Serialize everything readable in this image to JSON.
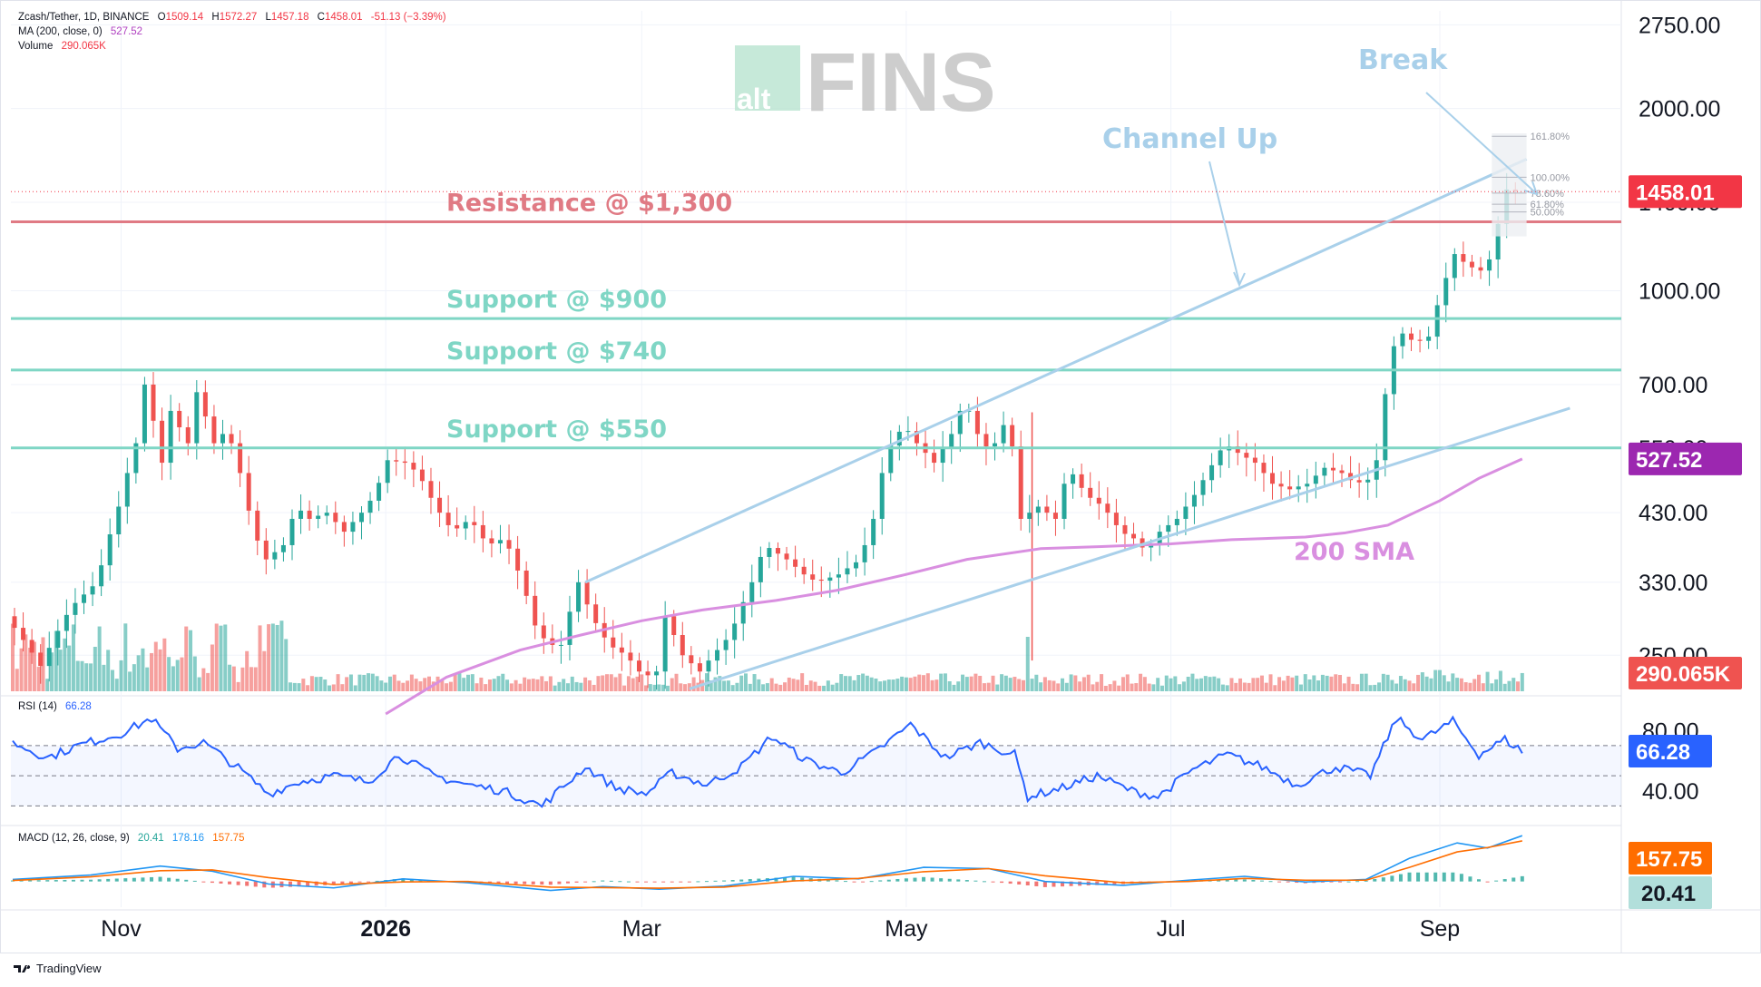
{
  "header": {
    "symbol": "Zcash/Tether, 1D, BINANCE",
    "o_label": "O",
    "o": "1509.14",
    "h_label": "H",
    "h": "1572.27",
    "l_label": "L",
    "l": "1457.18",
    "c_label": "C",
    "c": "1458.01",
    "change": "-51.13 (−3.39%)",
    "ma_label": "MA (200, close, 0)",
    "ma_value": "527.52",
    "vol_label": "Volume",
    "vol_value": "290.065K"
  },
  "logo": {
    "alt": "alt",
    "fins": "FINS"
  },
  "footer": {
    "brand": "TradingView"
  },
  "rsi_label": "RSI (14)",
  "rsi_value": "66.28",
  "macd_label": "MACD (12, 26, close, 9)",
  "macd_values": [
    "20.41",
    "178.16",
    "157.75"
  ],
  "colors": {
    "up": "#26a69a",
    "down": "#ef5350",
    "sma": "#d98fe0",
    "support": "#7fd6c5",
    "resistance": "#e07a84",
    "channel": "#a9d0ea",
    "rsi": "#2962ff",
    "macd": "#2196f3",
    "signal": "#ff6d00",
    "annotation": "#a9d0ea"
  },
  "chart_data": {
    "type": "candlestick",
    "title": "Zcash/Tether, 1D, BINANCE",
    "price_scale": "log",
    "y_ticks": [
      2750,
      2000,
      1400,
      1000,
      700,
      550,
      430,
      330,
      250
    ],
    "y_tick_labels": [
      "2750.00",
      "2000.00",
      "1400.00",
      "1000.00",
      "700.00",
      "550.00",
      "430.00",
      "330.00",
      "250.00"
    ],
    "x_ticks": [
      {
        "date": "2025-11-01",
        "label": "Nov",
        "bold": false
      },
      {
        "date": "2026-01-01",
        "label": "2026",
        "bold": true
      },
      {
        "date": "2026-03-01",
        "label": "Mar",
        "bold": false
      },
      {
        "date": "2026-05-01",
        "label": "May",
        "bold": false
      },
      {
        "date": "2026-07-01",
        "label": "Jul",
        "bold": false
      },
      {
        "date": "2026-09-01",
        "label": "Sep",
        "bold": false
      }
    ],
    "price_path": [
      [
        "2025-10-07",
        290
      ],
      [
        "2025-10-15",
        240
      ],
      [
        "2025-10-22",
        300
      ],
      [
        "2025-10-28",
        330
      ],
      [
        "2025-11-02",
        440
      ],
      [
        "2025-11-06",
        560
      ],
      [
        "2025-11-08",
        700
      ],
      [
        "2025-11-12",
        520
      ],
      [
        "2025-11-15",
        690
      ],
      [
        "2025-11-17",
        500
      ],
      [
        "2025-11-20",
        680
      ],
      [
        "2025-11-24",
        560
      ],
      [
        "2025-11-27",
        590
      ],
      [
        "2025-11-30",
        500
      ],
      [
        "2025-12-03",
        400
      ],
      [
        "2025-12-06",
        360
      ],
      [
        "2025-12-10",
        380
      ],
      [
        "2025-12-13",
        440
      ],
      [
        "2025-12-16",
        420
      ],
      [
        "2025-12-20",
        430
      ],
      [
        "2025-12-24",
        400
      ],
      [
        "2025-12-28",
        430
      ],
      [
        "2025-12-31",
        460
      ],
      [
        "2026-01-03",
        525
      ],
      [
        "2026-01-07",
        520
      ],
      [
        "2026-01-10",
        500
      ],
      [
        "2026-01-14",
        440
      ],
      [
        "2026-01-18",
        400
      ],
      [
        "2026-01-22",
        420
      ],
      [
        "2026-01-26",
        380
      ],
      [
        "2026-01-30",
        390
      ],
      [
        "2026-02-03",
        330
      ],
      [
        "2026-02-06",
        280
      ],
      [
        "2026-02-09",
        260
      ],
      [
        "2026-02-12",
        260
      ],
      [
        "2026-02-16",
        330
      ],
      [
        "2026-02-19",
        290
      ],
      [
        "2026-02-23",
        260
      ],
      [
        "2026-02-27",
        250
      ],
      [
        "2026-03-03",
        230
      ],
      [
        "2026-03-06",
        235
      ],
      [
        "2026-03-08",
        290
      ],
      [
        "2026-03-12",
        250
      ],
      [
        "2026-03-16",
        235
      ],
      [
        "2026-03-19",
        250
      ],
      [
        "2026-03-23",
        270
      ],
      [
        "2026-03-28",
        330
      ],
      [
        "2026-03-31",
        380
      ],
      [
        "2026-04-05",
        360
      ],
      [
        "2026-04-09",
        340
      ],
      [
        "2026-04-12",
        330
      ],
      [
        "2026-04-17",
        340
      ],
      [
        "2026-04-22",
        360
      ],
      [
        "2026-04-25",
        420
      ],
      [
        "2026-04-28",
        540
      ],
      [
        "2026-05-02",
        600
      ],
      [
        "2026-05-05",
        560
      ],
      [
        "2026-05-09",
        520
      ],
      [
        "2026-05-13",
        580
      ],
      [
        "2026-05-16",
        660
      ],
      [
        "2026-05-19",
        580
      ],
      [
        "2026-05-22",
        540
      ],
      [
        "2026-05-26",
        620
      ],
      [
        "2026-05-29",
        420
      ],
      [
        "2026-06-02",
        440
      ],
      [
        "2026-06-06",
        420
      ],
      [
        "2026-06-09",
        510
      ],
      [
        "2026-06-13",
        460
      ],
      [
        "2026-06-17",
        440
      ],
      [
        "2026-06-21",
        400
      ],
      [
        "2026-06-24",
        390
      ],
      [
        "2026-06-27",
        370
      ],
      [
        "2026-06-30",
        400
      ],
      [
        "2026-07-04",
        420
      ],
      [
        "2026-07-08",
        460
      ],
      [
        "2026-07-11",
        500
      ],
      [
        "2026-07-15",
        560
      ],
      [
        "2026-07-18",
        540
      ],
      [
        "2026-07-22",
        520
      ],
      [
        "2026-07-26",
        480
      ],
      [
        "2026-07-30",
        470
      ],
      [
        "2026-08-03",
        480
      ],
      [
        "2026-08-07",
        510
      ],
      [
        "2026-08-11",
        500
      ],
      [
        "2026-08-14",
        480
      ],
      [
        "2026-08-18",
        490
      ],
      [
        "2026-08-20",
        560
      ],
      [
        "2026-08-22",
        790
      ],
      [
        "2026-08-25",
        850
      ],
      [
        "2026-08-28",
        820
      ],
      [
        "2026-08-31",
        840
      ],
      [
        "2026-09-03",
        1000
      ],
      [
        "2026-09-06",
        1150
      ],
      [
        "2026-09-09",
        1100
      ],
      [
        "2026-09-12",
        1080
      ],
      [
        "2026-09-15",
        1150
      ],
      [
        "2026-09-17",
        1430
      ],
      [
        "2026-09-19",
        1510
      ],
      [
        "2026-09-20",
        1458
      ]
    ],
    "sma200_path": [
      [
        "2026-01-01",
        200
      ],
      [
        "2026-01-15",
        230
      ],
      [
        "2026-02-01",
        255
      ],
      [
        "2026-02-15",
        270
      ],
      [
        "2026-03-01",
        285
      ],
      [
        "2026-03-15",
        297
      ],
      [
        "2026-04-01",
        308
      ],
      [
        "2026-04-15",
        320
      ],
      [
        "2026-05-01",
        340
      ],
      [
        "2026-05-15",
        360
      ],
      [
        "2026-06-01",
        375
      ],
      [
        "2026-06-15",
        378
      ],
      [
        "2026-07-01",
        382
      ],
      [
        "2026-07-15",
        388
      ],
      [
        "2026-08-01",
        392
      ],
      [
        "2026-08-10",
        398
      ],
      [
        "2026-08-20",
        410
      ],
      [
        "2026-09-01",
        450
      ],
      [
        "2026-09-10",
        490
      ],
      [
        "2026-09-20",
        527.52
      ]
    ],
    "volume_last": "290.065K",
    "horizontal_levels": [
      {
        "name": "Resistance @ $1,300",
        "price": 1300,
        "kind": "resistance"
      },
      {
        "name": "Support @ $900",
        "price": 900,
        "kind": "support"
      },
      {
        "name": "Support @ $740",
        "price": 740,
        "kind": "support"
      },
      {
        "name": "Support @ $550",
        "price": 550,
        "kind": "support"
      }
    ],
    "channel": {
      "upper": [
        [
          "2026-02-16",
          330
        ],
        [
          "2026-09-21",
          1650
        ]
      ],
      "lower": [
        [
          "2026-03-12",
          220
        ],
        [
          "2026-10-01",
          640
        ]
      ]
    },
    "annotations": [
      "Channel Up",
      "Break",
      "200 SMA"
    ],
    "fib_labels": [
      "161.80%",
      "100.00%",
      "78.60%",
      "61.80%",
      "50.00%"
    ],
    "price_tags": [
      {
        "label": "1458.01",
        "color": "#f23645"
      },
      {
        "label": "527.52",
        "color": "#9c27b0"
      },
      {
        "label": "290.065K",
        "color": "#ef5350"
      }
    ],
    "rsi": {
      "levels": [
        80,
        40
      ],
      "level_labels": [
        "80.00",
        "40.00"
      ],
      "range": [
        20,
        100
      ],
      "bands": [
        70,
        50,
        30
      ],
      "last": 66.28,
      "path": [
        [
          "2025-10-07",
          72
        ],
        [
          "2025-10-15",
          62
        ],
        [
          "2025-10-22",
          70
        ],
        [
          "2025-11-01",
          78
        ],
        [
          "2025-11-08",
          88
        ],
        [
          "2025-11-14",
          68
        ],
        [
          "2025-11-20",
          72
        ],
        [
          "2025-11-28",
          55
        ],
        [
          "2025-12-05",
          38
        ],
        [
          "2025-12-12",
          46
        ],
        [
          "2025-12-20",
          50
        ],
        [
          "2025-12-28",
          46
        ],
        [
          "2026-01-04",
          64
        ],
        [
          "2026-01-12",
          50
        ],
        [
          "2026-01-20",
          44
        ],
        [
          "2026-01-28",
          40
        ],
        [
          "2026-02-06",
          30
        ],
        [
          "2026-02-16",
          56
        ],
        [
          "2026-02-23",
          42
        ],
        [
          "2026-03-02",
          38
        ],
        [
          "2026-03-08",
          52
        ],
        [
          "2026-03-16",
          44
        ],
        [
          "2026-03-24",
          56
        ],
        [
          "2026-03-31",
          76
        ],
        [
          "2026-04-08",
          60
        ],
        [
          "2026-04-16",
          52
        ],
        [
          "2026-04-24",
          66
        ],
        [
          "2026-05-02",
          84
        ],
        [
          "2026-05-10",
          62
        ],
        [
          "2026-05-18",
          72
        ],
        [
          "2026-05-26",
          64
        ],
        [
          "2026-05-29",
          36
        ],
        [
          "2026-06-06",
          42
        ],
        [
          "2026-06-14",
          50
        ],
        [
          "2026-06-22",
          40
        ],
        [
          "2026-06-28",
          36
        ],
        [
          "2026-07-06",
          54
        ],
        [
          "2026-07-14",
          64
        ],
        [
          "2026-07-22",
          56
        ],
        [
          "2026-07-30",
          44
        ],
        [
          "2026-08-08",
          56
        ],
        [
          "2026-08-16",
          50
        ],
        [
          "2026-08-22",
          88
        ],
        [
          "2026-08-28",
          74
        ],
        [
          "2026-09-04",
          86
        ],
        [
          "2026-09-10",
          64
        ],
        [
          "2026-09-16",
          74
        ],
        [
          "2026-09-20",
          66.28
        ]
      ]
    },
    "macd": {
      "macd_last": 178.16,
      "signal_last": 157.75,
      "hist_last": 20.41,
      "range": [
        -100,
        200
      ],
      "macd_path": [
        [
          "2025-10-07",
          8
        ],
        [
          "2025-10-25",
          25
        ],
        [
          "2025-11-10",
          60
        ],
        [
          "2025-11-22",
          40
        ],
        [
          "2025-12-05",
          -10
        ],
        [
          "2025-12-20",
          -25
        ],
        [
          "2026-01-05",
          10
        ],
        [
          "2026-01-20",
          -5
        ],
        [
          "2026-02-08",
          -35
        ],
        [
          "2026-02-20",
          -20
        ],
        [
          "2026-03-05",
          -30
        ],
        [
          "2026-03-20",
          -18
        ],
        [
          "2026-04-05",
          20
        ],
        [
          "2026-04-20",
          10
        ],
        [
          "2026-05-05",
          55
        ],
        [
          "2026-05-20",
          50
        ],
        [
          "2026-06-02",
          0
        ],
        [
          "2026-06-20",
          -15
        ],
        [
          "2026-07-05",
          5
        ],
        [
          "2026-07-18",
          20
        ],
        [
          "2026-08-01",
          -2
        ],
        [
          "2026-08-15",
          8
        ],
        [
          "2026-08-25",
          90
        ],
        [
          "2026-09-05",
          150
        ],
        [
          "2026-09-12",
          130
        ],
        [
          "2026-09-20",
          178.16
        ]
      ],
      "signal_path": [
        [
          "2025-10-07",
          4
        ],
        [
          "2025-10-25",
          18
        ],
        [
          "2025-11-10",
          42
        ],
        [
          "2025-11-22",
          45
        ],
        [
          "2025-12-05",
          15
        ],
        [
          "2025-12-20",
          -12
        ],
        [
          "2026-01-05",
          -2
        ],
        [
          "2026-01-20",
          0
        ],
        [
          "2026-02-08",
          -22
        ],
        [
          "2026-02-20",
          -24
        ],
        [
          "2026-03-05",
          -26
        ],
        [
          "2026-03-20",
          -22
        ],
        [
          "2026-04-05",
          2
        ],
        [
          "2026-04-20",
          12
        ],
        [
          "2026-05-05",
          38
        ],
        [
          "2026-05-20",
          50
        ],
        [
          "2026-06-02",
          22
        ],
        [
          "2026-06-20",
          -5
        ],
        [
          "2026-07-05",
          0
        ],
        [
          "2026-07-18",
          12
        ],
        [
          "2026-08-01",
          5
        ],
        [
          "2026-08-15",
          5
        ],
        [
          "2026-08-25",
          55
        ],
        [
          "2026-09-05",
          115
        ],
        [
          "2026-09-12",
          132
        ],
        [
          "2026-09-20",
          157.75
        ]
      ]
    }
  }
}
